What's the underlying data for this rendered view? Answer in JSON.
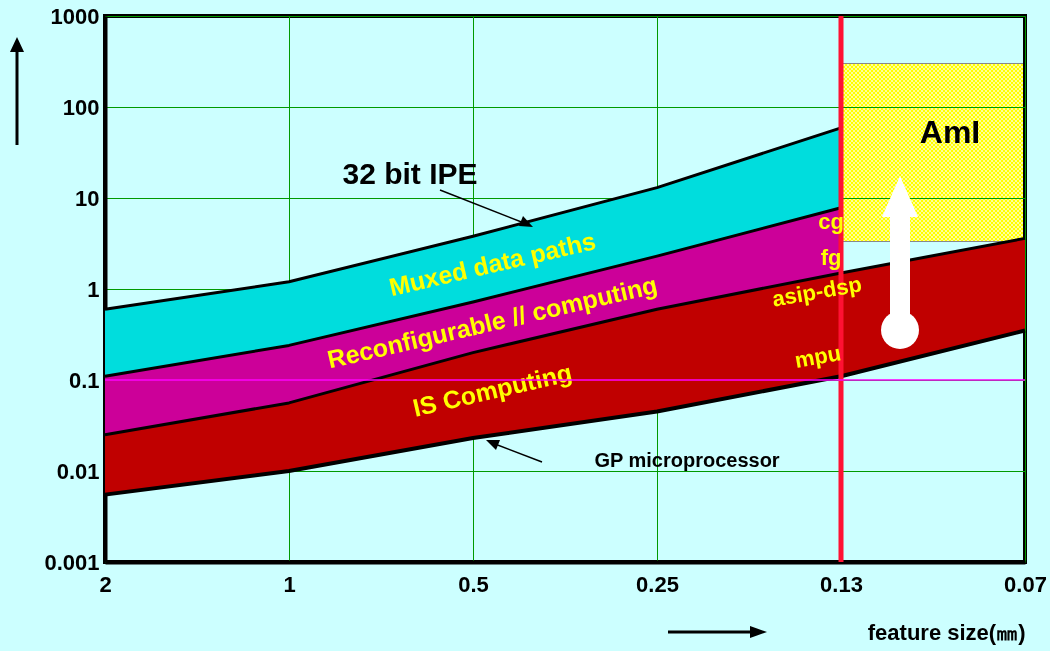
{
  "chart_data": {
    "type": "area",
    "categories": [
      "2",
      "1",
      "0.5",
      "0.25",
      "0.13",
      "0.07"
    ],
    "series": [
      {
        "name": "Muxed data paths",
        "color": "#00dddd",
        "values": [
          0.6,
          1.2,
          3.8,
          13,
          59,
          null
        ]
      },
      {
        "name": "Reconfigurable // computing",
        "color": "#cc0099",
        "values": [
          0.11,
          0.24,
          0.72,
          2.3,
          7.8,
          null
        ]
      },
      {
        "name": "IS Computing",
        "color": "#c00000",
        "values": [
          0.025,
          0.056,
          0.2,
          0.6,
          1.5,
          3.6
        ]
      },
      {
        "name": "GP microprocessor",
        "type": "line",
        "color": "#000000",
        "values": [
          0.0055,
          0.01,
          0.023,
          0.045,
          0.11,
          0.35
        ]
      }
    ],
    "log": true,
    "ylim": [
      0.001,
      1000
    ],
    "yticks": [
      0.001,
      0.01,
      0.1,
      1,
      10,
      100,
      1000
    ],
    "grid": true,
    "xlabel": "feature size(㎜)",
    "ref_lines": [
      {
        "axis": "x",
        "value": "0.13",
        "color": "#ff1133"
      },
      {
        "axis": "y",
        "value": 0.1,
        "color": "#ff00ff"
      }
    ],
    "annotations": [
      "32 bit IPE",
      "cg",
      "fg",
      "asip-dsp",
      "mpu",
      "AmI"
    ]
  }
}
